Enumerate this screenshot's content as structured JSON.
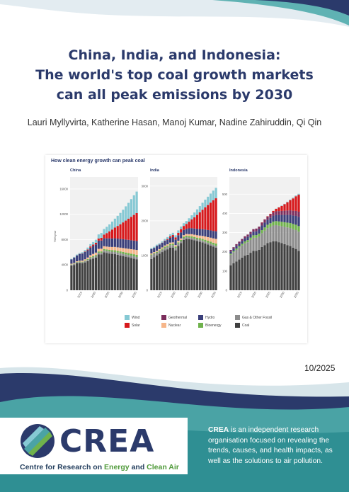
{
  "report": {
    "title_lines": [
      "China, India, and Indonesia:",
      "The world's top coal growth markets",
      "can all peak emissions by 2030"
    ],
    "authors": "Lauri Myllyvirta, Katherine Hasan, Manoj Kumar, Nadine Zahiruddin, Qi Qin",
    "date": "10/2025"
  },
  "figure": {
    "title": "How clean energy growth can peak coal",
    "legend": [
      {
        "name": "Wind",
        "color": "#86c9d4"
      },
      {
        "name": "Geothermal",
        "color": "#7b2d5c"
      },
      {
        "name": "Hydro",
        "color": "#3a3f7a"
      },
      {
        "name": "Gas & Other Fossil",
        "color": "#8c8c8c"
      },
      {
        "name": "Solar",
        "color": "#d7191c"
      },
      {
        "name": "Nuclear",
        "color": "#f6b68a"
      },
      {
        "name": "Bioenergy",
        "color": "#6fb24c"
      },
      {
        "name": "Coal",
        "color": "#404040"
      }
    ]
  },
  "chart_data": [
    {
      "type": "bar",
      "stacked": true,
      "title": "China",
      "ylabel": "TWh/year",
      "ylim": [
        0,
        17000
      ],
      "yticks": [
        0,
        4000,
        8000,
        12000,
        16000
      ],
      "xticks": [
        "2015",
        "2020",
        "2025",
        "2030",
        "2035"
      ],
      "x": [
        2011,
        2012,
        2013,
        2014,
        2015,
        2016,
        2017,
        2018,
        2019,
        2020,
        2021,
        2022,
        2023,
        2024,
        2025,
        2026,
        2027,
        2028,
        2029,
        2030,
        2031,
        2032,
        2033,
        2034,
        2035
      ],
      "series": [
        {
          "name": "Coal",
          "values": [
            3900,
            4000,
            4250,
            4300,
            4250,
            4400,
            4600,
            4900,
            5000,
            5150,
            5650,
            5650,
            6000,
            5900,
            5800,
            5750,
            5700,
            5600,
            5500,
            5400,
            5300,
            5200,
            5100,
            5000,
            4900
          ]
        },
        {
          "name": "Gas & Other Fossil",
          "values": [
            150,
            150,
            150,
            150,
            170,
            180,
            200,
            210,
            230,
            250,
            280,
            280,
            300,
            320,
            330,
            340,
            350,
            350,
            360,
            360,
            360,
            360,
            360,
            360,
            360
          ]
        },
        {
          "name": "Bioenergy",
          "values": [
            50,
            60,
            70,
            80,
            90,
            100,
            120,
            140,
            160,
            180,
            200,
            210,
            220,
            230,
            240,
            250,
            260,
            270,
            280,
            290,
            300,
            310,
            320,
            330,
            340
          ]
        },
        {
          "name": "Nuclear",
          "values": [
            90,
            100,
            110,
            130,
            170,
            210,
            250,
            290,
            350,
            370,
            410,
            420,
            440,
            450,
            480,
            500,
            530,
            560,
            590,
            620,
            650,
            680,
            710,
            740,
            770
          ]
        },
        {
          "name": "Hydro",
          "values": [
            700,
            850,
            900,
            1050,
            1100,
            1150,
            1150,
            1200,
            1250,
            1300,
            1300,
            1300,
            1250,
            1300,
            1350,
            1350,
            1370,
            1380,
            1390,
            1400,
            1400,
            1410,
            1410,
            1420,
            1420
          ]
        },
        {
          "name": "Geothermal",
          "values": [
            0,
            0,
            0,
            0,
            0,
            0,
            0,
            0,
            0,
            0,
            0,
            0,
            0,
            0,
            0,
            0,
            0,
            0,
            0,
            0,
            0,
            0,
            0,
            0,
            0
          ]
        },
        {
          "name": "Solar",
          "values": [
            0,
            10,
            20,
            30,
            40,
            70,
            120,
            180,
            220,
            260,
            330,
            420,
            580,
            830,
            1100,
            1400,
            1700,
            2000,
            2300,
            2650,
            3000,
            3350,
            3700,
            4050,
            4400
          ]
        },
        {
          "name": "Wind",
          "values": [
            70,
            100,
            140,
            160,
            190,
            240,
            300,
            370,
            410,
            470,
            650,
            760,
            890,
            990,
            1100,
            1250,
            1400,
            1600,
            1800,
            2000,
            2250,
            2500,
            2800,
            3100,
            3400
          ]
        }
      ]
    },
    {
      "type": "bar",
      "stacked": true,
      "title": "India",
      "ylim": [
        0,
        3100
      ],
      "yticks": [
        0,
        1000,
        2000,
        3000
      ],
      "xticks": [
        "2015",
        "2020",
        "2025",
        "2030",
        "2035"
      ],
      "x": [
        2011,
        2012,
        2013,
        2014,
        2015,
        2016,
        2017,
        2018,
        2019,
        2020,
        2021,
        2022,
        2023,
        2024,
        2025,
        2026,
        2027,
        2028,
        2029,
        2030,
        2031,
        2032,
        2033,
        2034,
        2035
      ],
      "series": [
        {
          "name": "Coal",
          "values": [
            900,
            950,
            1000,
            1050,
            1100,
            1150,
            1180,
            1230,
            1230,
            1150,
            1280,
            1360,
            1450,
            1480,
            1470,
            1460,
            1440,
            1420,
            1400,
            1380,
            1350,
            1320,
            1290,
            1260,
            1230
          ]
        },
        {
          "name": "Gas & Other Fossil",
          "values": [
            110,
            100,
            80,
            70,
            70,
            70,
            70,
            70,
            70,
            70,
            60,
            50,
            50,
            50,
            50,
            50,
            50,
            50,
            50,
            50,
            50,
            50,
            50,
            50,
            50
          ]
        },
        {
          "name": "Bioenergy",
          "values": [
            20,
            20,
            25,
            30,
            30,
            35,
            35,
            35,
            40,
            40,
            40,
            40,
            40,
            40,
            40,
            45,
            45,
            45,
            50,
            50,
            55,
            55,
            60,
            60,
            65
          ]
        },
        {
          "name": "Nuclear",
          "values": [
            30,
            30,
            30,
            35,
            35,
            35,
            38,
            38,
            40,
            43,
            45,
            45,
            48,
            50,
            55,
            60,
            65,
            70,
            75,
            85,
            95,
            105,
            115,
            125,
            135
          ]
        },
        {
          "name": "Hydro",
          "values": [
            130,
            120,
            140,
            130,
            130,
            130,
            130,
            140,
            160,
            160,
            160,
            170,
            150,
            150,
            170,
            175,
            180,
            185,
            190,
            195,
            200,
            205,
            210,
            215,
            220
          ]
        },
        {
          "name": "Geothermal",
          "values": [
            0,
            0,
            0,
            0,
            0,
            0,
            0,
            0,
            0,
            0,
            0,
            0,
            0,
            0,
            0,
            0,
            0,
            0,
            0,
            0,
            0,
            0,
            0,
            0,
            0
          ]
        },
        {
          "name": "Solar",
          "values": [
            0,
            2,
            3,
            5,
            7,
            12,
            25,
            40,
            50,
            60,
            70,
            95,
            115,
            140,
            190,
            250,
            320,
            400,
            480,
            560,
            640,
            720,
            800,
            880,
            950
          ]
        },
        {
          "name": "Wind",
          "values": [
            24,
            30,
            35,
            35,
            35,
            45,
            55,
            60,
            65,
            60,
            70,
            75,
            80,
            85,
            100,
            120,
            140,
            160,
            180,
            200,
            220,
            240,
            260,
            280,
            300
          ]
        }
      ]
    },
    {
      "type": "bar",
      "stacked": true,
      "title": "Indonesia",
      "ylim": [
        0,
        560
      ],
      "yticks": [
        0,
        100,
        200,
        300,
        400,
        500
      ],
      "xticks": [
        "2015",
        "2020",
        "2025",
        "2030",
        "2035"
      ],
      "x": [
        2011,
        2012,
        2013,
        2014,
        2015,
        2016,
        2017,
        2018,
        2019,
        2020,
        2021,
        2022,
        2023,
        2024,
        2025,
        2026,
        2027,
        2028,
        2029,
        2030,
        2031,
        2032,
        2033,
        2034,
        2035
      ],
      "series": [
        {
          "name": "Coal",
          "values": [
            130,
            140,
            150,
            160,
            170,
            180,
            185,
            195,
            205,
            205,
            210,
            225,
            235,
            245,
            250,
            255,
            255,
            250,
            245,
            240,
            235,
            230,
            222,
            215,
            205
          ]
        },
        {
          "name": "Gas & Other Fossil",
          "values": [
            55,
            58,
            60,
            62,
            63,
            64,
            65,
            67,
            68,
            68,
            70,
            72,
            75,
            78,
            80,
            82,
            84,
            86,
            88,
            90,
            92,
            94,
            96,
            98,
            100
          ]
        },
        {
          "name": "Bioenergy",
          "values": [
            5,
            6,
            7,
            8,
            9,
            10,
            11,
            12,
            13,
            14,
            15,
            16,
            17,
            18,
            19,
            20,
            21,
            22,
            23,
            24,
            25,
            26,
            27,
            28,
            29
          ]
        },
        {
          "name": "Nuclear",
          "values": [
            0,
            0,
            0,
            0,
            0,
            0,
            0,
            0,
            0,
            0,
            0,
            0,
            0,
            0,
            0,
            0,
            0,
            0,
            0,
            0,
            0,
            0,
            0,
            0,
            0
          ]
        },
        {
          "name": "Hydro",
          "values": [
            12,
            12,
            14,
            14,
            15,
            17,
            18,
            18,
            19,
            20,
            22,
            24,
            25,
            26,
            28,
            30,
            32,
            34,
            36,
            38,
            40,
            42,
            44,
            46,
            48
          ]
        },
        {
          "name": "Geothermal",
          "values": [
            8,
            8,
            9,
            9,
            10,
            10,
            11,
            12,
            13,
            14,
            14,
            15,
            16,
            16,
            17,
            18,
            19,
            20,
            21,
            22,
            23,
            24,
            25,
            26,
            27
          ]
        },
        {
          "name": "Solar",
          "values": [
            0,
            0,
            0,
            0,
            0,
            0,
            0,
            0,
            0,
            0,
            0,
            1,
            1,
            2,
            4,
            8,
            13,
            19,
            26,
            34,
            43,
            53,
            64,
            76,
            88
          ]
        },
        {
          "name": "Wind",
          "values": [
            0,
            0,
            0,
            0,
            0,
            0,
            0,
            0,
            0,
            0,
            0,
            0,
            0,
            0,
            0,
            0,
            1,
            1,
            2,
            2,
            3,
            3,
            4,
            4,
            5
          ]
        }
      ]
    }
  ],
  "org": {
    "logo_word": "CREA",
    "tagline_pre": "Centre for Research on ",
    "tagline_hl": "Energy",
    "tagline_mid": " and ",
    "tagline_hl2": "Clean Air",
    "desc_name": "CREA",
    "desc_text": " is an independent research organisation focused on revealing the trends, causes, and health impacts, as well as the solutions to air pollution."
  }
}
